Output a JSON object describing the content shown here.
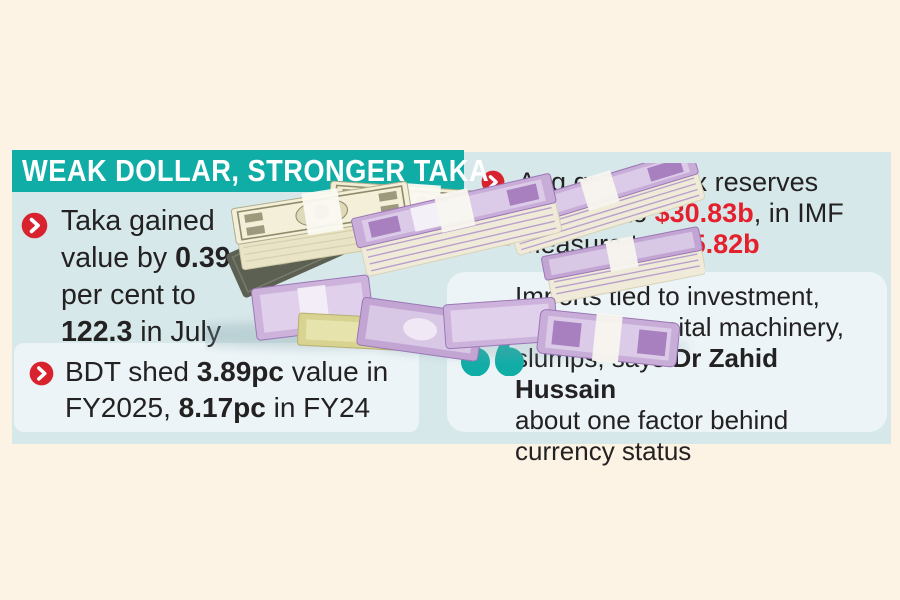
{
  "colors": {
    "accent-teal": "#10ada6",
    "accent-red": "#d8232f",
    "red-text": "#e4202c",
    "panel-blue": "#d7e8ea",
    "card-bg": "#ecf4f7",
    "cream-bg": "#fdf3e4",
    "text-dark": "#232121"
  },
  "header": {
    "title": "WEAK DOLLAR, STRONGER TAKA"
  },
  "facts": {
    "taka_gain": {
      "segments": [
        {
          "t": "Taka gained\nvalue by "
        },
        {
          "t": "0.39",
          "b": true
        },
        {
          "t": "\nper cent to\n"
        },
        {
          "t": "122.3",
          "b": true
        },
        {
          "t": " in July"
        }
      ]
    },
    "bdt_shed": {
      "segments": [
        {
          "t": "BDT shed "
        },
        {
          "t": "3.89pc",
          "b": true
        },
        {
          "t": " value in\nFY2025, "
        },
        {
          "t": "8.17pc",
          "b": true
        },
        {
          "t": " in FY24"
        }
      ]
    },
    "forex_reserves": {
      "segments": [
        {
          "t": "Aug gross forex reserves\nrebound to "
        },
        {
          "t": "$30.83b",
          "b": true,
          "red": true
        },
        {
          "t": ", in IMF\nmeasure to "
        },
        {
          "t": "$25.82b",
          "b": true,
          "red": true
        }
      ]
    }
  },
  "quote": {
    "segments": [
      {
        "t": "Imports tied to investment,\nespecially capital machinery,\nslumps, says "
      },
      {
        "t": "Dr Zahid Hussain",
        "b": true
      },
      {
        "t": "\nabout one factor behind\ncurrency status"
      }
    ]
  },
  "money_image": {
    "description": "Stacks of banded US dollar bundles and Bangladeshi 1000-taka banknote bundles with loose notes"
  }
}
